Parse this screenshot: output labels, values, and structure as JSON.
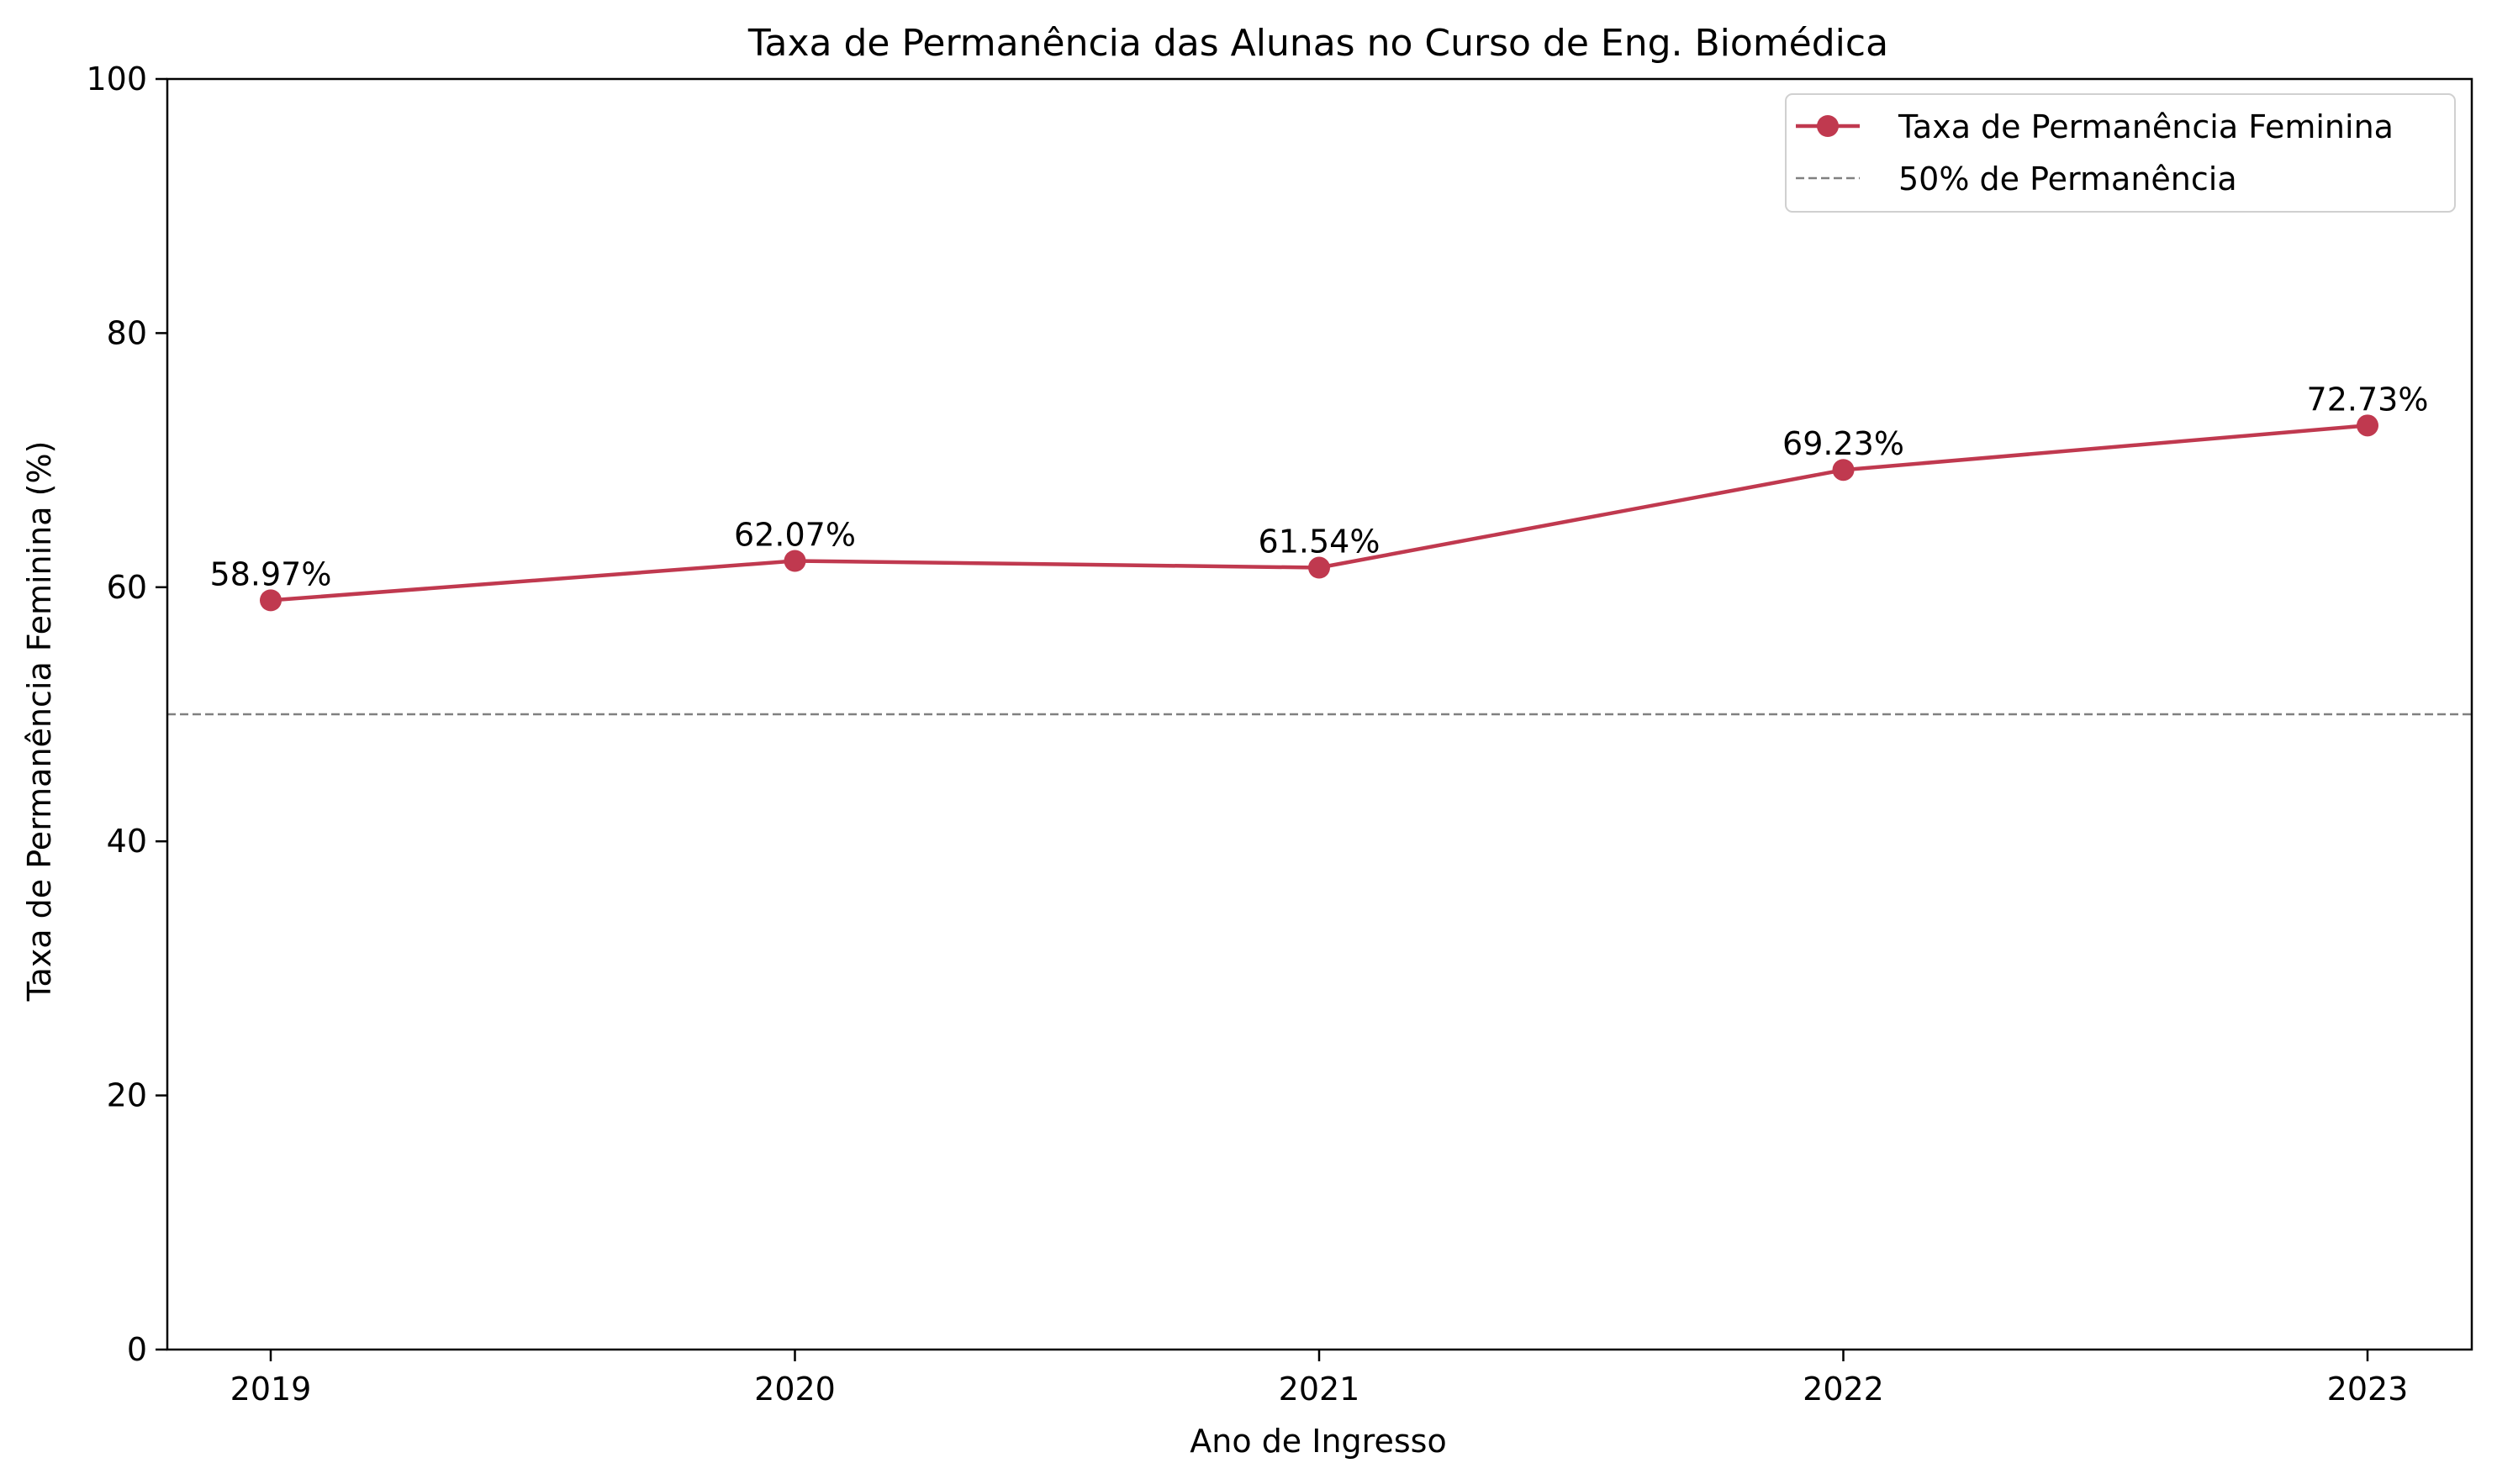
{
  "chart_data": {
    "type": "line",
    "title": "Taxa de Permanência das Alunas no Curso de Eng. Biomédica",
    "xlabel": "Ano de Ingresso",
    "ylabel": "Taxa de Permanência Feminina (%)",
    "categories": [
      "2019",
      "2020",
      "2021",
      "2022",
      "2023"
    ],
    "ylim": [
      0,
      100
    ],
    "yticks": [
      "0",
      "20",
      "40",
      "60",
      "80",
      "100"
    ],
    "grid": false,
    "legend_position": "top-right",
    "series": [
      {
        "name": "Taxa de Permanência Feminina",
        "values": [
          58.97,
          62.07,
          61.54,
          69.23,
          72.73
        ],
        "data_labels": [
          "58.97%",
          "62.07%",
          "61.54%",
          "69.23%",
          "72.73%"
        ],
        "color": "#c0394f",
        "marker": "circle"
      }
    ],
    "reference_lines": [
      {
        "name": "50% de Permanência",
        "y": 50,
        "style": "dashed",
        "color": "#808080"
      }
    ]
  }
}
